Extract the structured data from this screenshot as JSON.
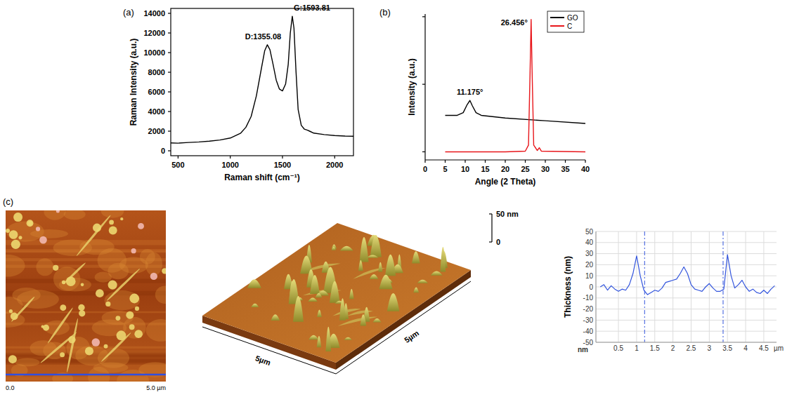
{
  "chart_data": [
    {
      "type": "line",
      "panel_label": "(a)",
      "x_label": "Raman shift (cm⁻¹)",
      "y_label": "Raman Intensity (a.u.)",
      "color": "#000000",
      "x": [
        430,
        500,
        600,
        700,
        800,
        900,
        1000,
        1100,
        1150,
        1200,
        1250,
        1300,
        1330,
        1355,
        1380,
        1410,
        1440,
        1470,
        1500,
        1530,
        1555,
        1575,
        1594,
        1610,
        1630,
        1650,
        1680,
        1710,
        1740,
        1760,
        1800,
        1900,
        2000,
        2100,
        2180
      ],
      "values": [
        800,
        780,
        850,
        900,
        980,
        1100,
        1300,
        1800,
        2400,
        3500,
        5600,
        8500,
        10200,
        10800,
        10300,
        8800,
        7200,
        6300,
        6100,
        6800,
        8800,
        12000,
        13700,
        12500,
        8000,
        4200,
        2600,
        2200,
        2100,
        2000,
        1800,
        1650,
        1550,
        1500,
        1480
      ],
      "xlim": [
        430,
        2180
      ],
      "ylim": [
        -500,
        14500
      ],
      "xticks": [
        500,
        1000,
        1500,
        2000
      ],
      "yticks": [
        0,
        2000,
        4000,
        6000,
        8000,
        10000,
        12000,
        14000
      ],
      "annotations": [
        {
          "text": "D:1355.08",
          "x": 1355.08,
          "y": 10800
        },
        {
          "text": "G:1593.81",
          "x": 1593.81,
          "y": 13700
        }
      ]
    },
    {
      "type": "line",
      "panel_label": "(b)",
      "x_label": "Angle (2 Theta)",
      "y_label": "Intensity (a.u.)",
      "xlim": [
        0,
        40
      ],
      "ylim": [
        -0.06,
        1.02
      ],
      "xticks": [
        0,
        5,
        10,
        15,
        20,
        25,
        30,
        35,
        40
      ],
      "yticks": [
        0,
        0.5,
        1
      ],
      "tick_labels": "x",
      "legend": "upper right",
      "series": [
        {
          "name": "GO",
          "color": "#000000",
          "x": [
            5,
            8,
            9.5,
            10.5,
            11.175,
            11.8,
            12.7,
            14,
            20,
            30,
            40
          ],
          "values": [
            0.27,
            0.27,
            0.29,
            0.35,
            0.38,
            0.34,
            0.29,
            0.27,
            0.25,
            0.23,
            0.21
          ]
        },
        {
          "name": "C",
          "color": "#e8161b",
          "x": [
            5,
            20,
            25,
            25.8,
            26.2,
            26.456,
            26.7,
            27.1,
            28,
            28.5,
            29,
            40
          ],
          "values": [
            0,
            0,
            0.005,
            0.05,
            0.6,
            0.98,
            0.6,
            0.05,
            0.01,
            0.03,
            0.005,
            0
          ]
        }
      ],
      "annotations": [
        {
          "text": "11.175°",
          "x": 11.175,
          "y": 0.38
        },
        {
          "text": "26.456°",
          "x": 26.456,
          "y": 0.98
        }
      ]
    },
    {
      "type": "line",
      "y_label": "Thickness (nm)",
      "y_unit": "nm",
      "x_unit": "µm",
      "color": "#3355dd",
      "grid": true,
      "x": [
        0,
        0.1,
        0.2,
        0.3,
        0.4,
        0.5,
        0.6,
        0.7,
        0.8,
        0.9,
        1,
        1.1,
        1.2,
        1.3,
        1.4,
        1.5,
        1.6,
        1.7,
        1.8,
        1.9,
        2,
        2.1,
        2.2,
        2.3,
        2.4,
        2.5,
        2.6,
        2.7,
        2.8,
        2.9,
        3,
        3.1,
        3.2,
        3.3,
        3.4,
        3.5,
        3.6,
        3.7,
        3.8,
        3.9,
        4,
        4.1,
        4.2,
        4.3,
        4.4,
        4.5,
        4.6,
        4.7,
        4.8
      ],
      "values": [
        0,
        2,
        -3,
        1,
        -2,
        -4,
        -2,
        -3,
        2,
        12,
        28,
        10,
        -3,
        -7,
        -5,
        -3,
        -4,
        -1,
        4,
        5,
        6,
        7,
        12,
        18,
        12,
        2,
        -2,
        -3,
        -4,
        0,
        3,
        -1,
        -4,
        -4,
        -2,
        29,
        10,
        -1,
        2,
        6,
        0,
        -4,
        -2,
        -5,
        -6,
        -3,
        -6,
        -2,
        1
      ],
      "xlim": [
        -0.12,
        4.85
      ],
      "ylim": [
        -50,
        50
      ],
      "xticks": [
        0.5,
        1,
        1.5,
        2,
        2.5,
        3,
        3.5,
        4,
        4.5
      ],
      "yticks": [
        -50,
        -40,
        -30,
        -20,
        -10,
        0,
        10,
        20,
        30,
        40,
        50
      ],
      "markers": [
        1.22,
        3.38
      ]
    }
  ],
  "afm": {
    "panel_label": "(c)",
    "scale_start": "0.0",
    "scale_end": "5.0 µm",
    "surface_x_label": "5µm",
    "surface_y_label": "5µm",
    "z_ticks": [
      {
        "value": 0,
        "label": "0"
      },
      {
        "value": 50,
        "label": "50 nm"
      }
    ]
  }
}
